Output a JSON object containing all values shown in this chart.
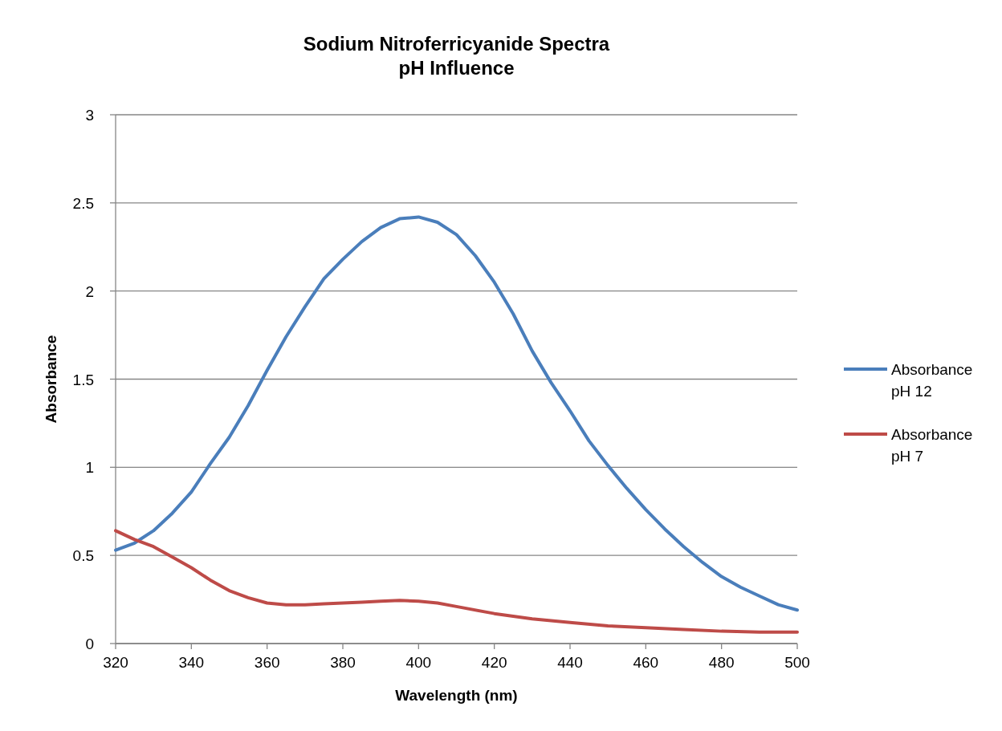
{
  "chart_data": {
    "type": "line",
    "title": "Sodium Nitroferricyanide Spectra\npH Influence",
    "xlabel": "Wavelength (nm)",
    "ylabel": "Absorbance",
    "xlim": [
      320,
      500
    ],
    "xticks": [
      320,
      340,
      360,
      380,
      400,
      420,
      440,
      460,
      480,
      500
    ],
    "ylim": [
      0,
      3
    ],
    "yticks": [
      0,
      0.5,
      1,
      1.5,
      2,
      2.5,
      3
    ],
    "grid": "y",
    "legend": "right",
    "line_style": "solid",
    "marker": "none",
    "series": [
      {
        "name": "Absorbance pH 12",
        "color": "#4a7ebb",
        "x": [
          320,
          325,
          330,
          335,
          340,
          345,
          350,
          355,
          360,
          365,
          370,
          375,
          380,
          385,
          390,
          395,
          400,
          405,
          410,
          415,
          420,
          425,
          430,
          435,
          440,
          445,
          450,
          455,
          460,
          465,
          470,
          475,
          480,
          485,
          490,
          495,
          500
        ],
        "values": [
          0.53,
          0.57,
          0.64,
          0.74,
          0.86,
          1.02,
          1.17,
          1.35,
          1.55,
          1.74,
          1.91,
          2.07,
          2.18,
          2.28,
          2.36,
          2.41,
          2.42,
          2.39,
          2.32,
          2.2,
          2.05,
          1.87,
          1.66,
          1.48,
          1.32,
          1.15,
          1.01,
          0.88,
          0.76,
          0.65,
          0.55,
          0.46,
          0.38,
          0.32,
          0.27,
          0.22,
          0.19
        ]
      },
      {
        "name": "Absorbance pH 7",
        "color": "#be4b48",
        "x": [
          320,
          325,
          330,
          335,
          340,
          345,
          350,
          355,
          360,
          365,
          370,
          375,
          380,
          385,
          390,
          395,
          400,
          405,
          410,
          420,
          430,
          440,
          450,
          460,
          470,
          480,
          490,
          500
        ],
        "values": [
          0.64,
          0.59,
          0.55,
          0.49,
          0.43,
          0.36,
          0.3,
          0.26,
          0.23,
          0.22,
          0.22,
          0.225,
          0.23,
          0.235,
          0.24,
          0.245,
          0.24,
          0.23,
          0.21,
          0.17,
          0.14,
          0.12,
          0.1,
          0.09,
          0.08,
          0.07,
          0.065,
          0.065
        ]
      }
    ]
  }
}
